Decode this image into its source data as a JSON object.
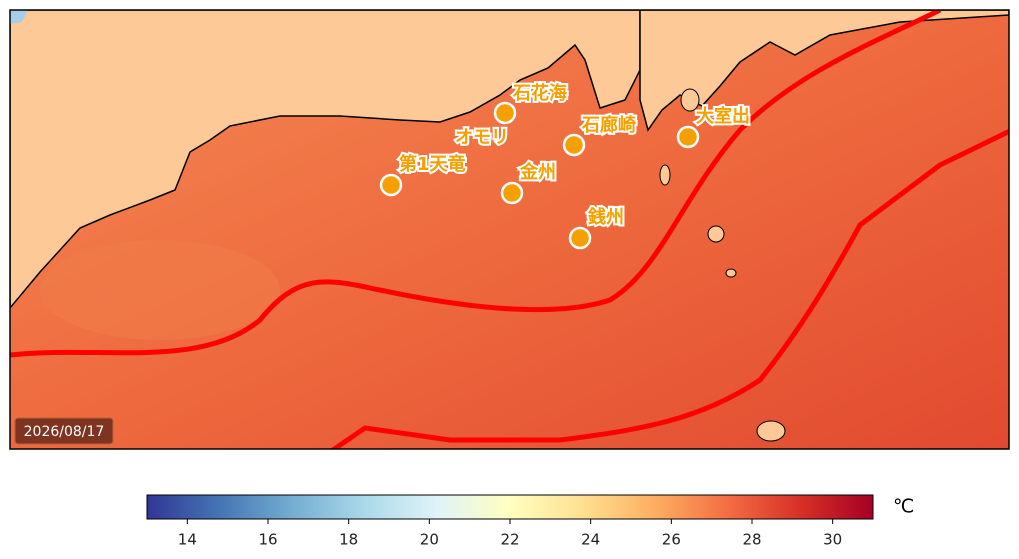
{
  "map": {
    "date": "2026/08/17",
    "points": [
      {
        "label": "石花海"
      },
      {
        "label": "オモリ"
      },
      {
        "label": "石廊崎"
      },
      {
        "label": "大室出"
      },
      {
        "label": "第1天竜"
      },
      {
        "label": "金州"
      },
      {
        "label": "銭州"
      }
    ]
  },
  "colorbar": {
    "min": 13,
    "max": 31,
    "ticks": [
      14,
      16,
      18,
      20,
      22,
      24,
      26,
      28,
      30
    ],
    "unit": "℃",
    "colors": [
      "#313695",
      "#4575b4",
      "#74add1",
      "#abd9e9",
      "#e0f3f8",
      "#ffffbf",
      "#fee090",
      "#fdae61",
      "#f46d43",
      "#d73027",
      "#a50026"
    ]
  }
}
